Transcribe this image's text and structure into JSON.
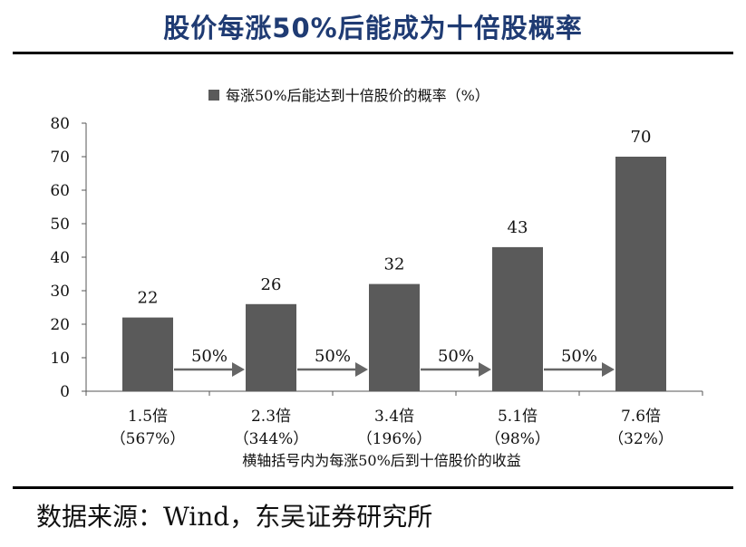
{
  "title": "股价每涨50%后能成为十倍股概率",
  "source": "数据来源：Wind，东吴证券研究所",
  "chart_data": {
    "type": "bar",
    "legend": "每涨50%后能达到十倍股价的概率（%）",
    "categories": [
      {
        "label": "1.5倍",
        "sub": "（567%）"
      },
      {
        "label": "2.3倍",
        "sub": "（344%）"
      },
      {
        "label": "3.4倍",
        "sub": "（196%）"
      },
      {
        "label": "5.1倍",
        "sub": "（98%）"
      },
      {
        "label": "7.6倍",
        "sub": "（32%）"
      }
    ],
    "values": [
      22,
      26,
      32,
      43,
      70
    ],
    "arrow_label": "50%",
    "xlabel": "横轴括号内为每涨50%后到十倍股价的收益",
    "ylim": [
      0,
      80
    ],
    "yticks": [
      0,
      10,
      20,
      30,
      40,
      50,
      60,
      70,
      80
    ],
    "bar_color": "#5a5a5a",
    "legend_position": "top"
  }
}
